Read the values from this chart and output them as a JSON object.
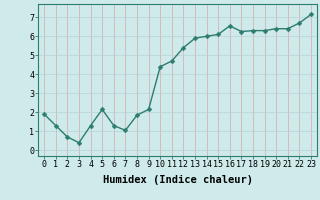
{
  "x": [
    0,
    1,
    2,
    3,
    4,
    5,
    6,
    7,
    8,
    9,
    10,
    11,
    12,
    13,
    14,
    15,
    16,
    17,
    18,
    19,
    20,
    21,
    22,
    23
  ],
  "y": [
    1.9,
    1.3,
    0.7,
    0.4,
    1.3,
    2.15,
    1.3,
    1.05,
    1.85,
    2.15,
    4.4,
    4.7,
    5.4,
    5.9,
    6.0,
    6.1,
    6.55,
    6.25,
    6.3,
    6.3,
    6.4,
    6.4,
    6.7,
    7.15
  ],
  "line_color": "#2d7d6e",
  "marker": "D",
  "marker_size": 2.5,
  "line_width": 1.0,
  "xlabel": "Humidex (Indice chaleur)",
  "xlabel_fontsize": 7.5,
  "xlim": [
    -0.5,
    23.5
  ],
  "ylim": [
    -0.3,
    7.7
  ],
  "yticks": [
    0,
    1,
    2,
    3,
    4,
    5,
    6,
    7
  ],
  "xticks": [
    0,
    1,
    2,
    3,
    4,
    5,
    6,
    7,
    8,
    9,
    10,
    11,
    12,
    13,
    14,
    15,
    16,
    17,
    18,
    19,
    20,
    21,
    22,
    23
  ],
  "background_color": "#ceeaea",
  "grid_color": "#b8d4d4",
  "tick_fontsize": 6.0,
  "spine_color": "#2d7d6e"
}
